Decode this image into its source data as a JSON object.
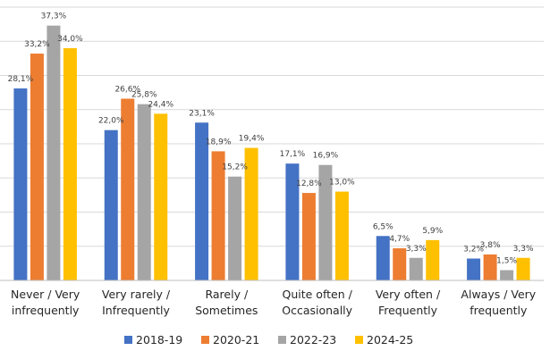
{
  "chart_data": {
    "type": "bar",
    "title": "",
    "xlabel": "",
    "ylabel": "",
    "ylim": [
      0,
      40
    ],
    "ygrid_step": 5,
    "grid": true,
    "legend": "bottom",
    "categories": [
      [
        "Never / Very",
        "infrequently"
      ],
      [
        "Very rarely /",
        "Infrequently"
      ],
      [
        "Rarely /",
        "Sometimes"
      ],
      [
        "Quite often /",
        "Occasionally"
      ],
      [
        "Very often /",
        "Frequently"
      ],
      [
        "Always / Very",
        "frequently"
      ]
    ],
    "series": [
      {
        "name": "2018-19",
        "color": "#4472c4",
        "values": [
          28.1,
          22.0,
          23.1,
          17.1,
          6.5,
          3.2
        ],
        "labels": [
          "28,1%",
          "22,0%",
          "23,1%",
          "17,1%",
          "6,5%",
          "3,2%"
        ]
      },
      {
        "name": "2020-21",
        "color": "#ed7d31",
        "values": [
          33.2,
          26.6,
          18.9,
          12.8,
          4.7,
          3.8
        ],
        "labels": [
          "33,2%",
          "26,6%",
          "18,9%",
          "12,8%",
          "4,7%",
          "3,8%"
        ]
      },
      {
        "name": "2022-23",
        "color": "#a5a5a5",
        "values": [
          37.3,
          25.8,
          15.2,
          16.9,
          3.3,
          1.5
        ],
        "labels": [
          "37,3%",
          "25,8%",
          "15,2%",
          "16,9%",
          "3,3%",
          "1,5%"
        ]
      },
      {
        "name": "2024-25",
        "color": "#ffc000",
        "values": [
          34.0,
          24.4,
          19.4,
          13.0,
          5.9,
          3.3
        ],
        "labels": [
          "34,0%",
          "24,4%",
          "19,4%",
          "13,0%",
          "5,9%",
          "3,3%"
        ]
      }
    ]
  }
}
